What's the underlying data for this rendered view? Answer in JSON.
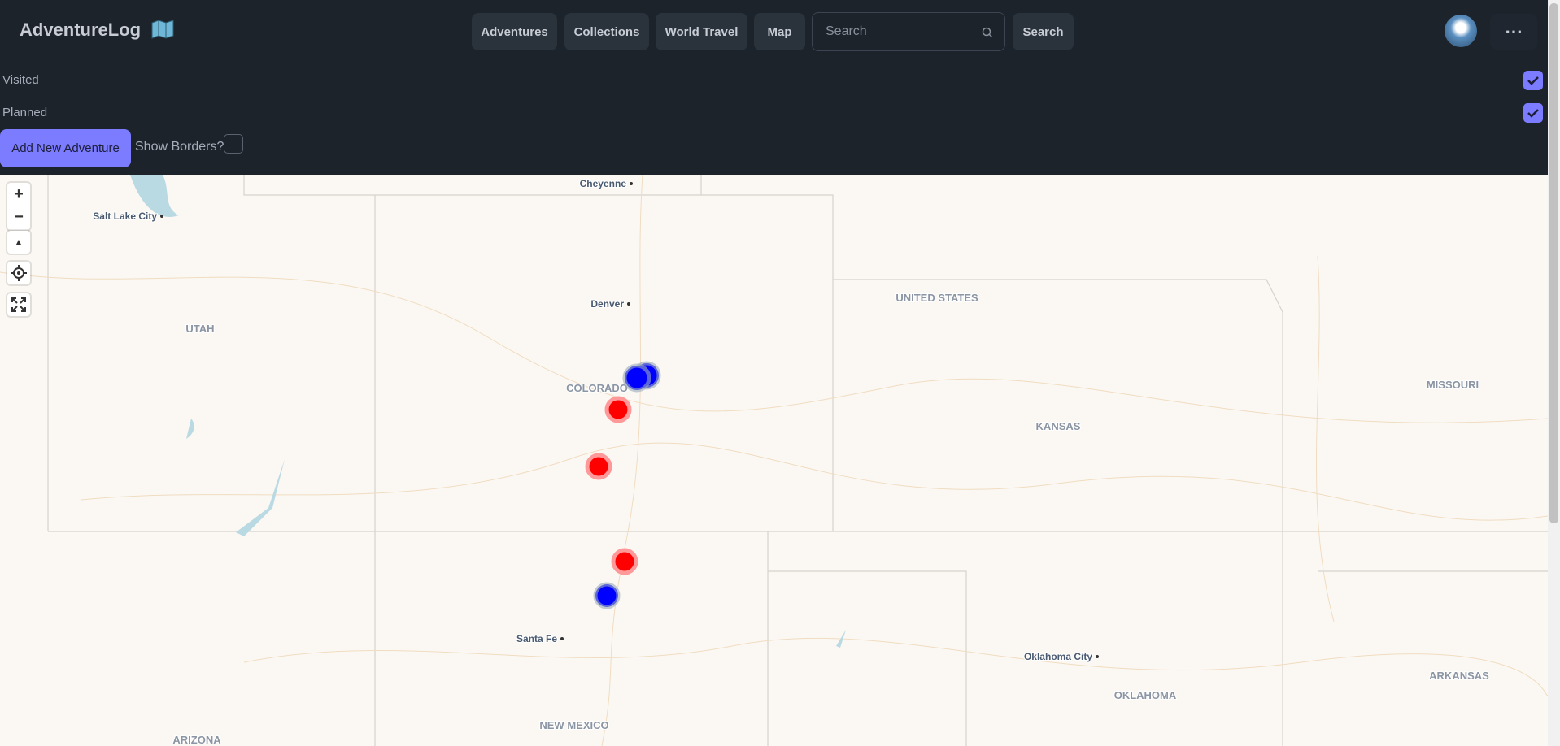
{
  "header": {
    "brand": "AdventureLog",
    "nav": [
      "Adventures",
      "Collections",
      "World Travel",
      "Map"
    ],
    "search_placeholder": "Search",
    "search_button": "Search"
  },
  "filters": {
    "visited": "Visited",
    "planned": "Planned",
    "add_button": "Add New Adventure",
    "show_borders": "Show Borders?"
  },
  "map": {
    "controls": {
      "zoom_in": "+",
      "zoom_out": "−"
    },
    "labels": [
      "Cheyenne",
      "Salt Lake City",
      "Denver",
      "UNITED STATES",
      "UTAH",
      "COLORADO",
      "MISSOURI",
      "KANSAS",
      "Santa Fe",
      "Oklahoma City",
      "OKLAHOMA",
      "ARKANSAS",
      "NEW MEXICO",
      "ARIZONA"
    ]
  }
}
